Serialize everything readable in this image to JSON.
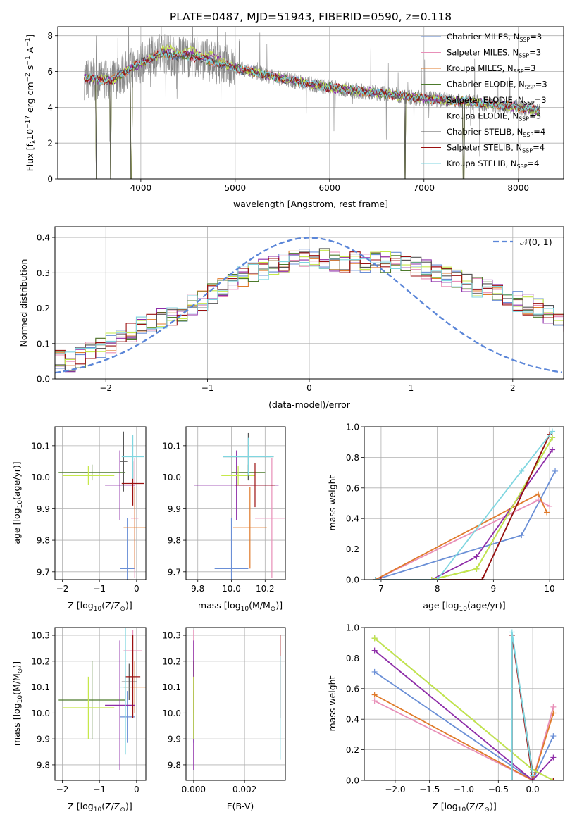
{
  "figure": {
    "title": "PLATE=0487, MJD=51943, FIBERID=0590, z=0.118",
    "colors": {
      "c1": "#6a8fd6",
      "c2": "#e88fb8",
      "c3": "#e07a2a",
      "c4": "#4c7a2b",
      "c5": "#8e2da8",
      "c6": "#c6e84a",
      "c7": "#555555",
      "c8": "#9b1010",
      "c9": "#7fd6e0",
      "gray": "#888888",
      "grid": "#b0b0b0",
      "gauss": "#5b86d8"
    }
  },
  "chart_data": [
    {
      "type": "line",
      "id": "spectrum",
      "xlabel": "wavelength [Angstrom, rest frame]",
      "ylabel": "Flux [f",
      "ylabel_sub": "λ",
      "ylabel_rest": "10",
      "ylabel_sup1": "−17",
      "ylabel_rest2": " erg cm",
      "ylabel_sup2": "−2",
      "ylabel_rest3": " s",
      "ylabel_sup3": "−1",
      "ylabel_rest4": " A",
      "ylabel_sup4": "−1",
      "ylabel_end": "]",
      "xlim": [
        3120,
        8480
      ],
      "ylim": [
        0,
        8.5
      ],
      "xticks": [
        4000,
        5000,
        6000,
        7000,
        8000
      ],
      "yticks": [
        0,
        2,
        4,
        6,
        8
      ],
      "observed_trend": [
        [
          3400,
          5.6
        ],
        [
          3700,
          5.5
        ],
        [
          3900,
          6.2
        ],
        [
          4200,
          7.0
        ],
        [
          4600,
          6.8
        ],
        [
          5000,
          6.2
        ],
        [
          5500,
          5.6
        ],
        [
          6000,
          5.1
        ],
        [
          6500,
          4.8
        ],
        [
          7000,
          4.5
        ],
        [
          7500,
          4.3
        ],
        [
          8000,
          4.0
        ],
        [
          8230,
          3.8
        ]
      ],
      "model_gaps": [
        3530,
        3680,
        3900,
        6800,
        7420
      ],
      "legend": [
        {
          "name": "Chabrier MILES, N",
          "sub": "SSP",
          "eq": "=3",
          "color": "c1"
        },
        {
          "name": "Salpeter MILES, N",
          "sub": "SSP",
          "eq": "=3",
          "color": "c2"
        },
        {
          "name": "Kroupa MILES, N",
          "sub": "SSP",
          "eq": "=3",
          "color": "c3"
        },
        {
          "name": "Chabrier ELODIE, N",
          "sub": "SSP",
          "eq": "=3",
          "color": "c4"
        },
        {
          "name": "Salpeter ELODIE, N",
          "sub": "SSP",
          "eq": "=3",
          "color": "c5"
        },
        {
          "name": "Kroupa ELODIE, N",
          "sub": "SSP",
          "eq": "=3",
          "color": "c6"
        },
        {
          "name": "Chabrier STELIB, N",
          "sub": "SSP",
          "eq": "=4",
          "color": "c7"
        },
        {
          "name": "Salpeter STELIB, N",
          "sub": "SSP",
          "eq": "=4",
          "color": "c8"
        },
        {
          "name": "Kroupa STELIB, N",
          "sub": "SSP",
          "eq": "=4",
          "color": "c9"
        }
      ]
    },
    {
      "type": "histogram",
      "id": "residuals",
      "xlabel": "(data-model)/error",
      "ylabel": "Normed distribution",
      "xlim": [
        -2.5,
        2.5
      ],
      "ylim": [
        0,
        0.43
      ],
      "xticks": [
        -2,
        -1,
        0,
        1,
        2
      ],
      "xtick_labels": [
        "−2",
        "−1",
        "0",
        "1",
        "2"
      ],
      "yticks": [
        0.0,
        0.1,
        0.2,
        0.3,
        0.4
      ],
      "ytick_labels": [
        "0.0",
        "0.1",
        "0.2",
        "0.3",
        "0.4"
      ],
      "legend": "𝒩(0, 1)",
      "bin_width": 0.1,
      "bins_start": -2.5,
      "envelope": [
        0.06,
        0.05,
        0.06,
        0.08,
        0.09,
        0.1,
        0.11,
        0.13,
        0.15,
        0.16,
        0.17,
        0.18,
        0.19,
        0.21,
        0.22,
        0.24,
        0.26,
        0.27,
        0.29,
        0.3,
        0.31,
        0.32,
        0.33,
        0.34,
        0.34,
        0.34,
        0.34,
        0.33,
        0.33,
        0.33,
        0.33,
        0.33,
        0.33,
        0.33,
        0.32,
        0.32,
        0.31,
        0.3,
        0.29,
        0.28,
        0.27,
        0.26,
        0.25,
        0.24,
        0.23,
        0.22,
        0.21,
        0.2,
        0.18,
        0.17,
        0.16,
        0.15,
        0.14,
        0.12,
        0.11,
        0.1,
        0.09,
        0.08,
        0.08,
        0.07,
        0.06,
        0.06,
        0.05,
        0.05,
        0.05,
        0.05,
        0.05,
        0.04,
        0.04,
        0.04
      ]
    },
    {
      "type": "errorbar",
      "id": "age_vs_Z",
      "xlabel": "Z [log",
      "xlabel_sub": "10",
      "xlabel_rest": "(Z/Z",
      "xlabel_sub2": "⊙",
      "xlabel_end": ")]",
      "ylabel": "age  [log",
      "ylabel_sub": "10",
      "ylabel_rest": "(age/yr)]",
      "xlim": [
        -2.2,
        0.25
      ],
      "ylim": [
        9.675,
        10.16
      ],
      "xticks": [
        -2,
        -1,
        0
      ],
      "xtick_labels": [
        "−2",
        "−1",
        "0"
      ],
      "yticks": [
        9.7,
        9.8,
        9.9,
        10.0,
        10.1
      ],
      "ytick_labels": [
        "9.7",
        "9.8",
        "9.9",
        "10.0",
        "10.1"
      ],
      "points": [
        {
          "x": -0.25,
          "xerr": 0.2,
          "y": 9.71,
          "yerr": 0.16,
          "color": "c1"
        },
        {
          "x": -0.05,
          "xerr": 0.1,
          "y": 9.87,
          "yerr": 0.19,
          "color": "c2"
        },
        {
          "x": -0.05,
          "xerr": 0.3,
          "y": 9.84,
          "yerr": 0.13,
          "color": "c3"
        },
        {
          "x": -1.2,
          "xerr": 0.9,
          "y": 10.015,
          "yerr": 0.025,
          "color": "c4"
        },
        {
          "x": -0.45,
          "xerr": 0.4,
          "y": 9.975,
          "yerr": 0.11,
          "color": "c5"
        },
        {
          "x": -1.3,
          "xerr": 0.7,
          "y": 10.005,
          "yerr": 0.03,
          "color": "c6"
        },
        {
          "x": -0.35,
          "xerr": 0.1,
          "y": 10.05,
          "yerr": 0.095,
          "color": "c7"
        },
        {
          "x": -0.1,
          "xerr": 0.3,
          "y": 9.98,
          "yerr": 0.07,
          "color": "c8"
        },
        {
          "x": -0.1,
          "xerr": 0.3,
          "y": 10.065,
          "yerr": 0.07,
          "color": "c9"
        }
      ]
    },
    {
      "type": "errorbar",
      "id": "age_vs_mass",
      "xlabel": "mass [log",
      "xlabel_sub": "10",
      "xlabel_rest": "(M/M",
      "xlabel_sub2": "⊙",
      "xlabel_end": ")]",
      "xlim": [
        9.73,
        10.32
      ],
      "ylim": [
        9.675,
        10.16
      ],
      "xticks": [
        9.8,
        10.0,
        10.2
      ],
      "xtick_labels": [
        "9.8",
        "10.0",
        "10.2"
      ],
      "yticks": [
        9.7,
        9.8,
        9.9,
        10.0,
        10.1
      ],
      "ytick_labels": [
        "9.7",
        "9.8",
        "9.9",
        "10.0",
        "10.1"
      ],
      "points": [
        {
          "x": 10.0,
          "xerr": 0.1,
          "y": 9.71,
          "yerr": 0.16,
          "color": "c1"
        },
        {
          "x": 10.24,
          "xerr": 0.1,
          "y": 9.87,
          "yerr": 0.19,
          "color": "c2"
        },
        {
          "x": 10.11,
          "xerr": 0.1,
          "y": 9.84,
          "yerr": 0.13,
          "color": "c3"
        },
        {
          "x": 10.1,
          "xerr": 0.1,
          "y": 10.015,
          "yerr": 0.025,
          "color": "c4"
        },
        {
          "x": 10.03,
          "xerr": 0.25,
          "y": 9.975,
          "yerr": 0.11,
          "color": "c5"
        },
        {
          "x": 10.04,
          "xerr": 0.1,
          "y": 10.005,
          "yerr": 0.03,
          "color": "c6"
        },
        {
          "x": 10.1,
          "xerr": 0.15,
          "y": 10.065,
          "yerr": 0.075,
          "color": "c7"
        },
        {
          "x": 10.14,
          "xerr": 0.12,
          "y": 9.975,
          "yerr": 0.07,
          "color": "c8"
        },
        {
          "x": 10.1,
          "xerr": 0.15,
          "y": 10.065,
          "yerr": 0.06,
          "color": "c9"
        }
      ]
    },
    {
      "type": "line",
      "id": "weight_vs_age",
      "xlabel": "age  [log",
      "xlabel_sub": "10",
      "xlabel_rest": "(age/yr)]",
      "ylabel": "mass weight",
      "xlim": [
        6.7,
        10.25
      ],
      "ylim": [
        0,
        1.0
      ],
      "xticks": [
        7,
        8,
        9,
        10
      ],
      "xtick_labels": [
        "7",
        "8",
        "9",
        "10"
      ],
      "yticks": [
        0.0,
        0.2,
        0.4,
        0.6,
        0.8,
        1.0
      ],
      "ytick_labels": [
        "0.0",
        "0.2",
        "0.4",
        "0.6",
        "0.8",
        "1.0"
      ],
      "series": [
        {
          "color": "c1",
          "x": [
            6.9,
            9.5,
            10.1
          ],
          "y": [
            0.0,
            0.29,
            0.71
          ]
        },
        {
          "color": "c2",
          "x": [
            6.9,
            9.8,
            10.0
          ],
          "y": [
            0.0,
            0.52,
            0.48
          ]
        },
        {
          "color": "c3",
          "x": [
            6.9,
            9.8,
            9.95
          ],
          "y": [
            0.0,
            0.56,
            0.44
          ]
        },
        {
          "color": "c4",
          "x": [
            7.9,
            8.7,
            10.05
          ],
          "y": [
            0.0,
            0.07,
            0.93
          ]
        },
        {
          "color": "c5",
          "x": [
            7.9,
            8.7,
            10.05
          ],
          "y": [
            0.0,
            0.15,
            0.85
          ]
        },
        {
          "color": "c6",
          "x": [
            7.9,
            8.7,
            10.05
          ],
          "y": [
            0.0,
            0.07,
            0.93
          ]
        },
        {
          "color": "c7",
          "x": [
            6.9,
            8.8,
            10.0
          ],
          "y": [
            0.0,
            0.0,
            0.95
          ]
        },
        {
          "color": "c8",
          "x": [
            7.0,
            8.8,
            10.0
          ],
          "y": [
            0.0,
            0.0,
            0.95
          ]
        },
        {
          "color": "c9",
          "x": [
            6.9,
            8.0,
            9.5,
            10.05
          ],
          "y": [
            0.0,
            0.0,
            0.71,
            0.97
          ]
        }
      ]
    },
    {
      "type": "errorbar",
      "id": "mass_vs_Z",
      "xlabel": "Z [log",
      "xlabel_sub": "10",
      "xlabel_rest": "(Z/Z",
      "xlabel_sub2": "⊙",
      "xlabel_end": ")]",
      "ylabel": "mass [log",
      "ylabel_sub": "10",
      "ylabel_rest": "(M/M",
      "ylabel_sub2": "⊙",
      "ylabel_end": ")]",
      "xlim": [
        -2.2,
        0.25
      ],
      "ylim": [
        9.74,
        10.33
      ],
      "xticks": [
        -2,
        -1,
        0
      ],
      "xtick_labels": [
        "−2",
        "−1",
        "0"
      ],
      "yticks": [
        9.8,
        9.9,
        10.0,
        10.1,
        10.2,
        10.3
      ],
      "ytick_labels": [
        "9.8",
        "9.9",
        "10.0",
        "10.1",
        "10.2",
        "10.3"
      ],
      "points": [
        {
          "x": -0.25,
          "xerr": 0.2,
          "y": 9.985,
          "yerr": 0.1,
          "color": "c1"
        },
        {
          "x": -0.1,
          "xerr": 0.25,
          "y": 10.24,
          "yerr": 0.08,
          "color": "c2"
        },
        {
          "x": -0.05,
          "xerr": 0.3,
          "y": 10.1,
          "yerr": 0.1,
          "color": "c3"
        },
        {
          "x": -1.2,
          "xerr": 0.9,
          "y": 10.05,
          "yerr": 0.15,
          "color": "c4"
        },
        {
          "x": -0.45,
          "xerr": 0.4,
          "y": 10.03,
          "yerr": 0.25,
          "color": "c5"
        },
        {
          "x": -1.3,
          "xerr": 0.7,
          "y": 10.02,
          "yerr": 0.12,
          "color": "c6"
        },
        {
          "x": -0.2,
          "xerr": 0.2,
          "y": 10.12,
          "yerr": 0.07,
          "color": "c7"
        },
        {
          "x": -0.1,
          "xerr": 0.2,
          "y": 10.14,
          "yerr": 0.16,
          "color": "c8"
        },
        {
          "x": -0.3,
          "xerr": 0.15,
          "y": 10.1,
          "yerr": 0.26,
          "color": "c9"
        }
      ]
    },
    {
      "type": "errorbar",
      "id": "mass_vs_ebv",
      "xlabel": "E(B-V)",
      "xlim": [
        -0.0003,
        0.0036
      ],
      "ylim": [
        9.74,
        10.33
      ],
      "xticks": [
        0.0,
        0.002
      ],
      "xtick_labels": [
        "0.000",
        "0.002"
      ],
      "yticks": [
        9.8,
        9.9,
        10.0,
        10.1,
        10.2,
        10.3
      ],
      "ytick_labels": [
        "9.8",
        "9.9",
        "10.0",
        "10.1",
        "10.2",
        "10.3"
      ],
      "points": [
        {
          "x": 0.0,
          "y": 9.985,
          "yerr": 0.1,
          "color": "c1"
        },
        {
          "x": 0.0,
          "y": 10.24,
          "yerr": 0.08,
          "color": "c2"
        },
        {
          "x": 0.0,
          "y": 10.1,
          "yerr": 0.1,
          "color": "c3"
        },
        {
          "x": 0.0,
          "y": 10.05,
          "yerr": 0.15,
          "color": "c4"
        },
        {
          "x": 0.0,
          "y": 10.03,
          "yerr": 0.25,
          "color": "c5"
        },
        {
          "x": 0.0,
          "y": 10.02,
          "yerr": 0.12,
          "color": "c6"
        },
        {
          "x": 0.0034,
          "y": 10.12,
          "yerr": 0.07,
          "color": "c7"
        },
        {
          "x": 0.0034,
          "y": 10.14,
          "yerr": 0.16,
          "color": "c8"
        },
        {
          "x": 0.0034,
          "y": 10.02,
          "yerr": 0.2,
          "color": "c9"
        }
      ]
    },
    {
      "type": "line",
      "id": "weight_vs_Z",
      "xlabel": "Z [log",
      "xlabel_sub": "10",
      "xlabel_rest": "(Z/Z",
      "xlabel_sub2": "⊙",
      "xlabel_end": ")]",
      "ylabel": "mass weight",
      "xlim": [
        -2.45,
        0.45
      ],
      "ylim": [
        0,
        1.0
      ],
      "xticks": [
        -2.0,
        -1.5,
        -1.0,
        -0.5,
        0.0
      ],
      "xtick_labels": [
        "−2.0",
        "−1.5",
        "−1.0",
        "−0.5",
        "0.0"
      ],
      "yticks": [
        0.0,
        0.2,
        0.4,
        0.6,
        0.8,
        1.0
      ],
      "ytick_labels": [
        "0.0",
        "0.2",
        "0.4",
        "0.6",
        "0.8",
        "1.0"
      ],
      "series": [
        {
          "color": "c1",
          "x": [
            -2.3,
            0.0,
            0.3
          ],
          "y": [
            0.71,
            0.0,
            0.29
          ]
        },
        {
          "color": "c2",
          "x": [
            -2.3,
            0.0,
            0.3
          ],
          "y": [
            0.52,
            0.0,
            0.48
          ]
        },
        {
          "color": "c3",
          "x": [
            -2.3,
            0.0,
            0.3
          ],
          "y": [
            0.56,
            0.0,
            0.44
          ]
        },
        {
          "color": "c4",
          "x": [
            -2.3,
            0.0,
            0.3
          ],
          "y": [
            0.93,
            0.07,
            0.0
          ]
        },
        {
          "color": "c5",
          "x": [
            -2.3,
            0.0,
            0.3
          ],
          "y": [
            0.85,
            0.0,
            0.15
          ]
        },
        {
          "color": "c6",
          "x": [
            -2.3,
            0.0,
            0.3
          ],
          "y": [
            0.93,
            0.07,
            0.0
          ]
        },
        {
          "color": "c7",
          "x": [
            -0.3,
            -0.3,
            0.0
          ],
          "y": [
            0.0,
            0.95,
            0.05
          ]
        },
        {
          "color": "c8",
          "x": [
            -0.3,
            -0.3,
            0.0,
            0.3
          ],
          "y": [
            0.0,
            0.95,
            0.0,
            0.0
          ]
        },
        {
          "color": "c9",
          "x": [
            -0.3,
            -0.3,
            0.0
          ],
          "y": [
            0.0,
            0.97,
            0.03
          ]
        }
      ]
    }
  ]
}
